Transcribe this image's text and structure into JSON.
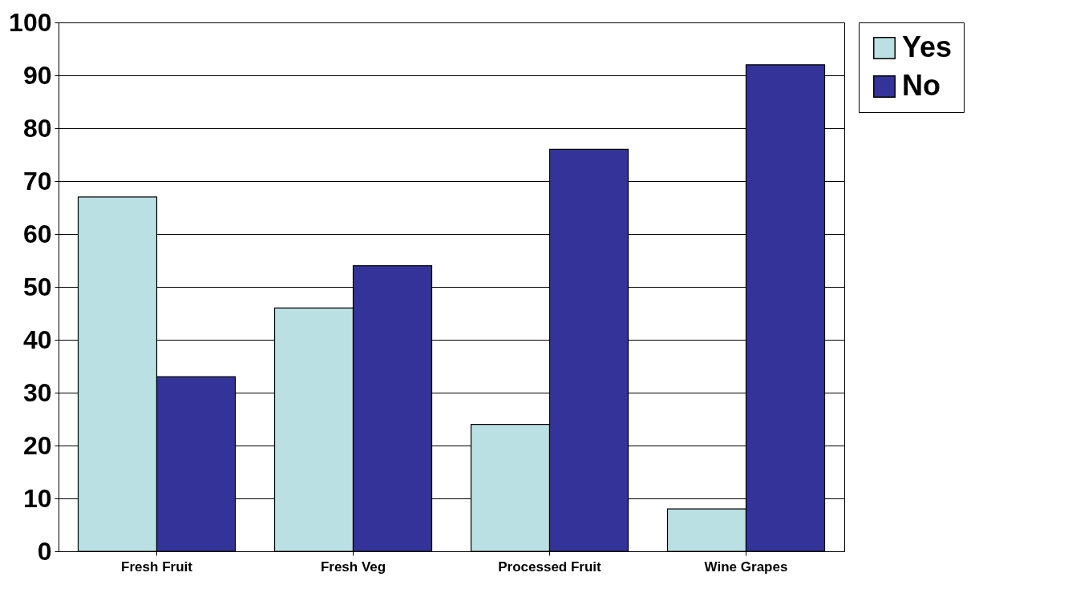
{
  "chart_data": {
    "type": "bar",
    "categories": [
      "Fresh Fruit",
      "Fresh Veg",
      "Processed Fruit",
      "Wine Grapes"
    ],
    "series": [
      {
        "name": "Yes",
        "color": "#bbe0e3",
        "values": [
          67,
          46,
          24,
          8
        ]
      },
      {
        "name": "No",
        "color": "#333399",
        "values": [
          33,
          54,
          76,
          92
        ]
      }
    ],
    "ylim": [
      0,
      100
    ],
    "yticks": [
      0,
      10,
      20,
      30,
      40,
      50,
      60,
      70,
      80,
      90,
      100
    ],
    "grid": "y",
    "legend": "right"
  }
}
